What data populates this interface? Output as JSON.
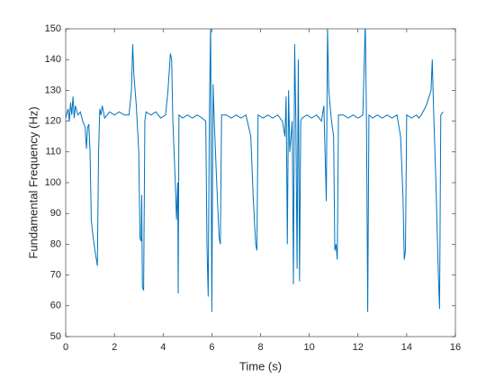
{
  "chart_data": {
    "type": "line",
    "xlabel": "Time (s)",
    "ylabel": "Fundamental Frequency (Hz)",
    "xlim": [
      0,
      16
    ],
    "xticks": [
      0,
      2,
      4,
      6,
      8,
      10,
      12,
      14,
      16
    ],
    "ylim": [
      50,
      150
    ],
    "yticks": [
      50,
      60,
      70,
      80,
      90,
      100,
      110,
      120,
      130,
      140,
      150
    ],
    "grid": false,
    "x": [
      0,
      0.1,
      0.15,
      0.2,
      0.25,
      0.3,
      0.35,
      0.4,
      0.5,
      0.6,
      0.7,
      0.8,
      0.85,
      0.9,
      0.95,
      1.0,
      1.05,
      1.1,
      1.2,
      1.3,
      1.35,
      1.4,
      1.45,
      1.5,
      1.6,
      1.8,
      2.0,
      2.2,
      2.4,
      2.6,
      2.7,
      2.75,
      2.8,
      2.9,
      3.0,
      3.05,
      3.1,
      3.12,
      3.15,
      3.2,
      3.25,
      3.3,
      3.5,
      3.7,
      3.9,
      4.1,
      4.2,
      4.3,
      4.35,
      4.4,
      4.5,
      4.55,
      4.6,
      4.62,
      4.65,
      4.8,
      5.0,
      5.2,
      5.4,
      5.6,
      5.75,
      5.8,
      5.85,
      5.9,
      5.95,
      6.0,
      6.05,
      6.1,
      6.2,
      6.3,
      6.35,
      6.4,
      6.6,
      6.8,
      7.0,
      7.2,
      7.4,
      7.6,
      7.7,
      7.8,
      7.85,
      7.9,
      8.1,
      8.3,
      8.5,
      8.7,
      8.9,
      9.0,
      9.05,
      9.1,
      9.15,
      9.2,
      9.3,
      9.35,
      9.4,
      9.45,
      9.5,
      9.55,
      9.6,
      9.65,
      9.7,
      9.9,
      10.1,
      10.3,
      10.5,
      10.6,
      10.7,
      10.75,
      10.8,
      10.9,
      11.0,
      11.05,
      11.1,
      11.15,
      11.2,
      11.4,
      11.6,
      11.8,
      12.0,
      12.2,
      12.3,
      12.35,
      12.4,
      12.45,
      12.6,
      12.8,
      13.0,
      13.2,
      13.4,
      13.6,
      13.75,
      13.85,
      13.9,
      13.95,
      14.0,
      14.2,
      14.4,
      14.5,
      14.6,
      14.8,
      15.0,
      15.05,
      15.1,
      15.2,
      15.3,
      15.35,
      15.4,
      15.5
    ],
    "series": [
      {
        "color": "#0072bd",
        "values": [
          121,
          124,
          120,
          126,
          122,
          128,
          121,
          125,
          122,
          123,
          120,
          118,
          111,
          118,
          119,
          110,
          88,
          84,
          78,
          73,
          110,
          124,
          122,
          125,
          121,
          123,
          122,
          123,
          122,
          122,
          130,
          145,
          135,
          125,
          110,
          82,
          81,
          96,
          66,
          65,
          120,
          123,
          122,
          123,
          121,
          122,
          130,
          142,
          140,
          120,
          100,
          88,
          100,
          64,
          122,
          121,
          122,
          121,
          122,
          121,
          120,
          80,
          63,
          122,
          152,
          58,
          132,
          120,
          100,
          82,
          80,
          122,
          122,
          121,
          122,
          121,
          122,
          115,
          95,
          80,
          78,
          122,
          121,
          122,
          121,
          122,
          120,
          115,
          128,
          80,
          130,
          110,
          120,
          67,
          145,
          120,
          72,
          140,
          68,
          120,
          121,
          122,
          121,
          122,
          120,
          125,
          94,
          150,
          130,
          121,
          115,
          78,
          80,
          75,
          122,
          122,
          121,
          122,
          121,
          122,
          152,
          120,
          58,
          122,
          121,
          122,
          121,
          122,
          121,
          122,
          115,
          95,
          75,
          78,
          122,
          121,
          122,
          121,
          122,
          125,
          130,
          140,
          125,
          100,
          70,
          59,
          122,
          123
        ]
      }
    ]
  }
}
